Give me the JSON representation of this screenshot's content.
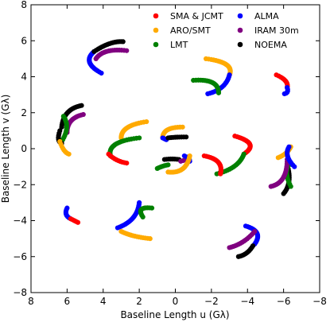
{
  "chart_data": {
    "type": "scatter",
    "xlabel": "Baseline Length u (Gλ)",
    "ylabel": "Baseline Length v (Gλ)",
    "xlim": [
      8,
      -8
    ],
    "ylim": [
      -8,
      8
    ],
    "xticks": [
      8,
      6,
      4,
      2,
      0,
      -2,
      -4,
      -6,
      -8
    ],
    "yticks": [
      -8,
      -6,
      -4,
      -2,
      0,
      2,
      4,
      6,
      8
    ],
    "legend_position": "top-right",
    "legend": [
      {
        "name": "SMA & JCMT",
        "color": "#ff0000"
      },
      {
        "name": "ALMA",
        "color": "#0000ff"
      },
      {
        "name": "ARO/SMT",
        "color": "#ffaa00"
      },
      {
        "name": "IRAM 30m",
        "color": "#800080"
      },
      {
        "name": "LMT",
        "color": "#008000"
      },
      {
        "name": "NOEMA",
        "color": "#000000"
      }
    ],
    "tracks": [
      {
        "color": "#ff0000",
        "start": [
          -5.6,
          4.1
        ],
        "ctrl": [
          -6.3,
          3.8
        ],
        "end": [
          -6.2,
          3.4
        ]
      },
      {
        "color": "#0000ff",
        "start": [
          -6.2,
          3.4
        ],
        "ctrl": [
          -6.3,
          3.1
        ],
        "end": [
          -6.05,
          3.05
        ]
      },
      {
        "color": "#ffaa00",
        "start": [
          -1.7,
          5.0
        ],
        "ctrl": [
          -3.3,
          4.8
        ],
        "end": [
          -3.0,
          4.1
        ]
      },
      {
        "color": "#0000ff",
        "start": [
          -3.0,
          4.1
        ],
        "ctrl": [
          -2.8,
          3.3
        ],
        "end": [
          -1.8,
          3.05
        ]
      },
      {
        "color": "#008000",
        "start": [
          -1.0,
          3.8
        ],
        "ctrl": [
          -2.4,
          3.9
        ],
        "end": [
          -2.4,
          3.1
        ]
      },
      {
        "color": "#0000ff",
        "start": [
          4.1,
          4.2
        ],
        "ctrl": [
          5.2,
          4.8
        ],
        "end": [
          4.5,
          5.4
        ]
      },
      {
        "color": "#000000",
        "start": [
          4.5,
          5.4
        ],
        "ctrl": [
          3.6,
          6.0
        ],
        "end": [
          2.9,
          5.95
        ]
      },
      {
        "color": "#800080",
        "start": [
          4.4,
          5.0
        ],
        "ctrl": [
          4.0,
          5.6
        ],
        "end": [
          2.7,
          5.45
        ]
      },
      {
        "color": "#000000",
        "start": [
          5.2,
          2.4
        ],
        "ctrl": [
          6.2,
          2.2
        ],
        "end": [
          6.3,
          1.2
        ]
      },
      {
        "color": "#800080",
        "start": [
          5.1,
          1.9
        ],
        "ctrl": [
          6.0,
          1.7
        ],
        "end": [
          6.0,
          0.9
        ]
      },
      {
        "color": "#008000",
        "start": [
          6.2,
          1.8
        ],
        "ctrl": [
          5.8,
          1.2
        ],
        "end": [
          6.3,
          0.4
        ]
      },
      {
        "color": "#000000",
        "start": [
          6.4,
          1.0
        ],
        "ctrl": [
          6.6,
          0.4
        ],
        "end": [
          6.3,
          0.3
        ]
      },
      {
        "color": "#ffaa00",
        "start": [
          6.4,
          0.4
        ],
        "ctrl": [
          6.2,
          -0.2
        ],
        "end": [
          5.9,
          -0.3
        ]
      },
      {
        "color": "#ffaa00",
        "start": [
          1.6,
          1.5
        ],
        "ctrl": [
          3.0,
          1.3
        ],
        "end": [
          3.0,
          0.6
        ]
      },
      {
        "color": "#008000",
        "start": [
          2.0,
          0.6
        ],
        "ctrl": [
          3.8,
          0.4
        ],
        "end": [
          3.6,
          -0.4
        ]
      },
      {
        "color": "#ff0000",
        "start": [
          3.7,
          -0.3
        ],
        "ctrl": [
          3.3,
          -0.7
        ],
        "end": [
          2.7,
          -0.8
        ]
      },
      {
        "color": "#ffaa00",
        "start": [
          -0.4,
          1.2
        ],
        "ctrl": [
          0.7,
          1.2
        ],
        "end": [
          0.7,
          0.6
        ]
      },
      {
        "color": "#0000ff",
        "start": [
          0.7,
          0.6
        ],
        "ctrl": [
          0.6,
          0.55
        ],
        "end": [
          0.5,
          0.5
        ]
      },
      {
        "color": "#000000",
        "start": [
          -0.6,
          0.65
        ],
        "ctrl": [
          0.0,
          0.65
        ],
        "end": [
          0.4,
          0.6
        ]
      },
      {
        "color": "#000000",
        "start": [
          0.6,
          -0.6
        ],
        "ctrl": [
          0.2,
          -0.55
        ],
        "end": [
          -0.2,
          -0.6
        ]
      },
      {
        "color": "#800080",
        "start": [
          -0.3,
          -0.7
        ],
        "ctrl": [
          -0.5,
          -0.65
        ],
        "end": [
          -0.6,
          -0.6
        ]
      },
      {
        "color": "#0000ff",
        "start": [
          -0.5,
          -0.4
        ],
        "ctrl": [
          -0.8,
          -0.5
        ],
        "end": [
          -0.8,
          -0.7
        ]
      },
      {
        "color": "#008000",
        "start": [
          1.0,
          -1.1
        ],
        "ctrl": [
          0.7,
          -0.95
        ],
        "end": [
          0.4,
          -0.9
        ]
      },
      {
        "color": "#ffaa00",
        "start": [
          -0.8,
          -0.4
        ],
        "ctrl": [
          -0.6,
          -1.4
        ],
        "end": [
          0.4,
          -1.3
        ]
      },
      {
        "color": "#ff0000",
        "start": [
          -3.3,
          0.7
        ],
        "ctrl": [
          -4.7,
          0.3
        ],
        "end": [
          -3.8,
          -0.3
        ]
      },
      {
        "color": "#008000",
        "start": [
          -3.8,
          -0.3
        ],
        "ctrl": [
          -3.5,
          -1.1
        ],
        "end": [
          -2.3,
          -1.4
        ]
      },
      {
        "color": "#ff0000",
        "start": [
          -1.6,
          -0.4
        ],
        "ctrl": [
          -2.7,
          -0.6
        ],
        "end": [
          -2.5,
          -1.4
        ]
      },
      {
        "color": "#ffaa00",
        "start": [
          -5.7,
          -0.5
        ],
        "ctrl": [
          -6.2,
          -0.3
        ],
        "end": [
          -6.4,
          0.1
        ]
      },
      {
        "color": "#000000",
        "start": [
          -6.0,
          -2.5
        ],
        "ctrl": [
          -6.5,
          -1.9
        ],
        "end": [
          -6.2,
          -0.9
        ]
      },
      {
        "color": "#008000",
        "start": [
          -6.3,
          -0.9
        ],
        "ctrl": [
          -6.0,
          -1.3
        ],
        "end": [
          -6.4,
          -2.1
        ]
      },
      {
        "color": "#800080",
        "start": [
          -5.3,
          -2.1
        ],
        "ctrl": [
          -6.2,
          -1.9
        ],
        "end": [
          -6.2,
          -0.6
        ]
      },
      {
        "color": "#0000ff",
        "start": [
          -6.3,
          0.1
        ],
        "ctrl": [
          -6.0,
          -0.4
        ],
        "end": [
          -6.6,
          -1.0
        ]
      },
      {
        "color": "#0000ff",
        "start": [
          6.0,
          -3.3
        ],
        "ctrl": [
          6.2,
          -3.7
        ],
        "end": [
          5.8,
          -3.9
        ]
      },
      {
        "color": "#ff0000",
        "start": [
          5.8,
          -3.9
        ],
        "ctrl": [
          5.6,
          -4.0
        ],
        "end": [
          5.4,
          -4.1
        ]
      },
      {
        "color": "#0000ff",
        "start": [
          3.2,
          -4.4
        ],
        "ctrl": [
          2.1,
          -4.0
        ],
        "end": [
          2.0,
          -3.0
        ]
      },
      {
        "color": "#ffaa00",
        "start": [
          3.0,
          -4.6
        ],
        "ctrl": [
          2.4,
          -4.9
        ],
        "end": [
          1.4,
          -5.0
        ]
      },
      {
        "color": "#008000",
        "start": [
          1.3,
          -3.3
        ],
        "ctrl": [
          2.2,
          -3.2
        ],
        "end": [
          1.8,
          -3.8
        ]
      },
      {
        "color": "#0000ff",
        "start": [
          -3.9,
          -4.3
        ],
        "ctrl": [
          -4.9,
          -4.6
        ],
        "end": [
          -4.4,
          -5.3
        ]
      },
      {
        "color": "#800080",
        "start": [
          -3.0,
          -5.5
        ],
        "ctrl": [
          -3.8,
          -5.3
        ],
        "end": [
          -4.4,
          -4.6
        ]
      },
      {
        "color": "#000000",
        "start": [
          -4.3,
          -5.4
        ],
        "ctrl": [
          -4.0,
          -5.9
        ],
        "end": [
          -3.5,
          -6.0
        ]
      }
    ]
  }
}
